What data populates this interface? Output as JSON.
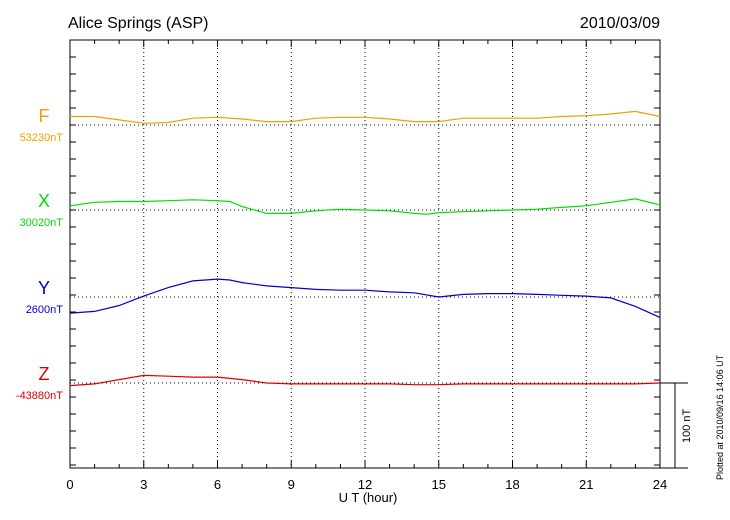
{
  "chart_data": {
    "type": "line",
    "title": "Alice Springs (ASP)",
    "date": "2010/03/09",
    "xlabel": "U T (hour)",
    "xlim": [
      0,
      24
    ],
    "xticks": [
      0,
      3,
      6,
      9,
      12,
      15,
      18,
      21,
      24
    ],
    "grid": true,
    "scale_bar": {
      "label": "100 nT",
      "value_nT": 100
    },
    "footer": "Plotted at 2010/09/16 14:06 UT",
    "series": [
      {
        "name": "F",
        "baseline_label": "53230nT",
        "baseline_nT": 53230,
        "color": "#f0a000",
        "x": [
          0,
          1,
          2,
          3,
          4,
          5,
          6,
          7,
          8,
          9,
          10,
          11,
          12,
          13,
          14,
          15,
          16,
          17,
          18,
          19,
          20,
          21,
          22,
          23,
          24
        ],
        "y": [
          53240,
          53240,
          53236,
          53232,
          53233,
          53238,
          53239,
          53237,
          53234,
          53234,
          53238,
          53239,
          53239,
          53237,
          53234,
          53234,
          53238,
          53238,
          53238,
          53238,
          53240,
          53241,
          53243,
          53246,
          53240
        ]
      },
      {
        "name": "X",
        "baseline_label": "30020nT",
        "baseline_nT": 30020,
        "color": "#00dd00",
        "x": [
          0,
          1,
          2,
          3,
          4,
          5,
          6,
          6.5,
          7,
          8,
          9,
          10,
          11,
          12,
          13,
          14,
          14.5,
          15,
          16,
          17,
          18,
          19,
          20,
          21,
          22,
          23,
          24
        ],
        "y": [
          30025,
          30029,
          30030,
          30030,
          30031,
          30032,
          30031,
          30030,
          30024,
          30016,
          30016,
          30019,
          30021,
          30020,
          30019,
          30016,
          30015,
          30017,
          30018,
          30019,
          30020,
          30021,
          30023,
          30025,
          30029,
          30033,
          30026
        ]
      },
      {
        "name": "Y",
        "baseline_label": "2600nT",
        "baseline_nT": 2600,
        "color": "#0000cc",
        "x": [
          0,
          1,
          2,
          3,
          4,
          5,
          6,
          6.5,
          7,
          8,
          9,
          10,
          11,
          12,
          13,
          14,
          15,
          16,
          17,
          18,
          19,
          20,
          21,
          22,
          23,
          24
        ],
        "y": [
          2581,
          2583,
          2590,
          2601,
          2611,
          2619,
          2621,
          2620,
          2617,
          2613,
          2611,
          2609,
          2608,
          2608,
          2606,
          2605,
          2600,
          2603,
          2604,
          2604,
          2603,
          2602,
          2601,
          2599,
          2589,
          2576
        ]
      },
      {
        "name": "Z",
        "baseline_label": "-43880nT",
        "baseline_nT": -43880,
        "color": "#dd0000",
        "x": [
          0,
          1,
          2,
          3,
          4,
          5,
          6,
          7,
          8,
          9,
          10,
          11,
          12,
          13,
          14,
          15,
          16,
          17,
          18,
          19,
          20,
          21,
          22,
          23,
          24
        ],
        "y": [
          -43883,
          -43881,
          -43876,
          -43871,
          -43872,
          -43873,
          -43873,
          -43876,
          -43880,
          -43881,
          -43881,
          -43881,
          -43881,
          -43881,
          -43882,
          -43882,
          -43881,
          -43881,
          -43881,
          -43881,
          -43881,
          -43881,
          -43881,
          -43881,
          -43880
        ]
      }
    ]
  }
}
